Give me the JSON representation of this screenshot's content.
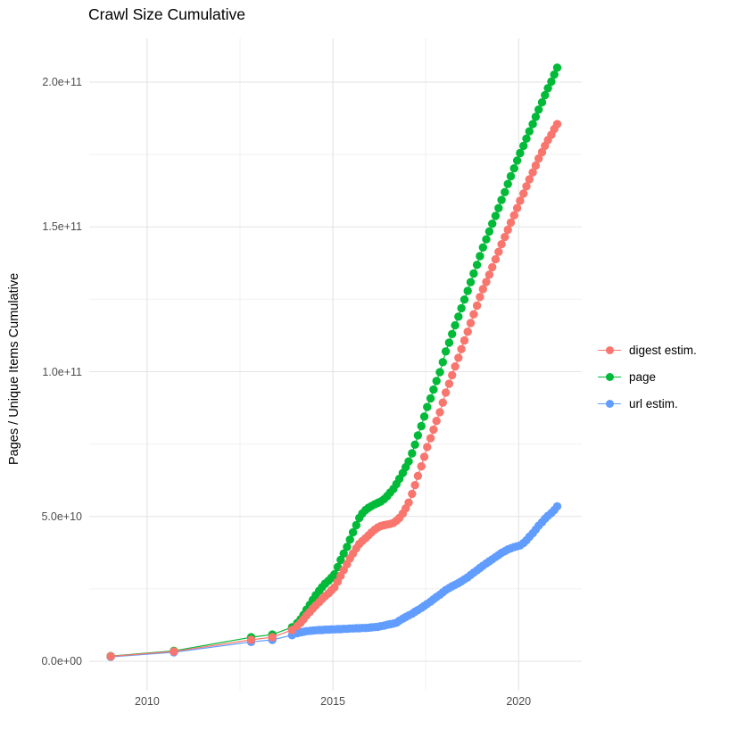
{
  "chart_data": {
    "type": "scatter",
    "title": "Crawl Size Cumulative",
    "y_axis": {
      "title": "Pages / Unique Items Cumulative",
      "value_unit": 10000000000,
      "ticks": [
        {
          "label": "0.0e+00",
          "value": 0
        },
        {
          "label": "5.0e+10",
          "value": 5
        },
        {
          "label": "1.0e+11",
          "value": 10
        },
        {
          "label": "1.5e+11",
          "value": 15
        },
        {
          "label": "2.0e+11",
          "value": 20
        }
      ],
      "minor_tick_values": [
        2.5,
        7.5,
        12.5,
        17.5
      ]
    },
    "x_axis": {
      "title": "",
      "ticks": [
        {
          "label": "2010",
          "value": 2010
        },
        {
          "label": "2015",
          "value": 2015
        },
        {
          "label": "2020",
          "value": 2020
        }
      ],
      "minor_tick_values": [
        2012.5,
        2017.5
      ]
    },
    "grid": {
      "major_color": "#e3e3e3",
      "minor_color": "#f0f0f0",
      "background": "#ffffff"
    },
    "legend_position": "right",
    "draw_order": [
      2,
      1,
      0
    ],
    "series": [
      {
        "name": "digest estim.",
        "color": "#F8766D",
        "points": [
          [
            2009.02,
            0.17
          ],
          [
            2010.72,
            0.34
          ],
          [
            2012.8,
            0.74
          ],
          [
            2013.37,
            0.83
          ],
          [
            2013.9,
            1.08
          ],
          [
            2014.04,
            1.22
          ],
          [
            2014.13,
            1.33
          ],
          [
            2014.21,
            1.45
          ],
          [
            2014.29,
            1.58
          ],
          [
            2014.38,
            1.7
          ],
          [
            2014.46,
            1.82
          ],
          [
            2014.54,
            1.93
          ],
          [
            2014.63,
            2.04
          ],
          [
            2014.71,
            2.15
          ],
          [
            2014.79,
            2.25
          ],
          [
            2014.88,
            2.34
          ],
          [
            2014.96,
            2.45
          ],
          [
            2015.04,
            2.55
          ],
          [
            2015.13,
            2.75
          ],
          [
            2015.21,
            2.95
          ],
          [
            2015.29,
            3.15
          ],
          [
            2015.38,
            3.35
          ],
          [
            2015.46,
            3.55
          ],
          [
            2015.54,
            3.72
          ],
          [
            2015.63,
            3.9
          ],
          [
            2015.71,
            4.05
          ],
          [
            2015.79,
            4.15
          ],
          [
            2015.88,
            4.25
          ],
          [
            2015.96,
            4.35
          ],
          [
            2016.04,
            4.45
          ],
          [
            2016.13,
            4.55
          ],
          [
            2016.21,
            4.62
          ],
          [
            2016.29,
            4.67
          ],
          [
            2016.38,
            4.7
          ],
          [
            2016.46,
            4.72
          ],
          [
            2016.54,
            4.74
          ],
          [
            2016.63,
            4.78
          ],
          [
            2016.71,
            4.85
          ],
          [
            2016.79,
            4.95
          ],
          [
            2016.88,
            5.1
          ],
          [
            2016.96,
            5.28
          ],
          [
            2017.04,
            5.48
          ],
          [
            2017.13,
            5.78
          ],
          [
            2017.21,
            6.08
          ],
          [
            2017.29,
            6.4
          ],
          [
            2017.38,
            6.73
          ],
          [
            2017.46,
            7.06
          ],
          [
            2017.54,
            7.4
          ],
          [
            2017.63,
            7.7
          ],
          [
            2017.71,
            8.0
          ],
          [
            2017.79,
            8.3
          ],
          [
            2017.88,
            8.6
          ],
          [
            2017.96,
            8.93
          ],
          [
            2018.04,
            9.28
          ],
          [
            2018.13,
            9.58
          ],
          [
            2018.21,
            9.88
          ],
          [
            2018.29,
            10.18
          ],
          [
            2018.38,
            10.48
          ],
          [
            2018.46,
            10.78
          ],
          [
            2018.54,
            11.08
          ],
          [
            2018.63,
            11.38
          ],
          [
            2018.71,
            11.68
          ],
          [
            2018.79,
            11.98
          ],
          [
            2018.88,
            12.28
          ],
          [
            2018.96,
            12.58
          ],
          [
            2019.04,
            12.85
          ],
          [
            2019.13,
            13.1
          ],
          [
            2019.21,
            13.35
          ],
          [
            2019.29,
            13.61
          ],
          [
            2019.38,
            13.88
          ],
          [
            2019.46,
            14.14
          ],
          [
            2019.54,
            14.4
          ],
          [
            2019.63,
            14.65
          ],
          [
            2019.71,
            14.9
          ],
          [
            2019.79,
            15.15
          ],
          [
            2019.88,
            15.4
          ],
          [
            2019.96,
            15.65
          ],
          [
            2020.04,
            15.9
          ],
          [
            2020.13,
            16.15
          ],
          [
            2020.21,
            16.4
          ],
          [
            2020.29,
            16.64
          ],
          [
            2020.38,
            16.88
          ],
          [
            2020.46,
            17.12
          ],
          [
            2020.54,
            17.36
          ],
          [
            2020.63,
            17.58
          ],
          [
            2020.71,
            17.8
          ],
          [
            2020.79,
            18.0
          ],
          [
            2020.88,
            18.18
          ],
          [
            2020.96,
            18.38
          ],
          [
            2021.04,
            18.55
          ]
        ]
      },
      {
        "name": "page",
        "color": "#00BA38",
        "points": [
          [
            2009.02,
            0.18
          ],
          [
            2010.72,
            0.36
          ],
          [
            2012.8,
            0.83
          ],
          [
            2013.37,
            0.92
          ],
          [
            2013.9,
            1.17
          ],
          [
            2014.04,
            1.32
          ],
          [
            2014.13,
            1.45
          ],
          [
            2014.21,
            1.6
          ],
          [
            2014.29,
            1.78
          ],
          [
            2014.38,
            1.95
          ],
          [
            2014.46,
            2.12
          ],
          [
            2014.54,
            2.28
          ],
          [
            2014.63,
            2.43
          ],
          [
            2014.71,
            2.56
          ],
          [
            2014.79,
            2.68
          ],
          [
            2014.88,
            2.78
          ],
          [
            2014.96,
            2.88
          ],
          [
            2015.04,
            3.0
          ],
          [
            2015.13,
            3.25
          ],
          [
            2015.21,
            3.5
          ],
          [
            2015.29,
            3.72
          ],
          [
            2015.38,
            3.95
          ],
          [
            2015.46,
            4.2
          ],
          [
            2015.54,
            4.45
          ],
          [
            2015.63,
            4.7
          ],
          [
            2015.71,
            4.95
          ],
          [
            2015.79,
            5.1
          ],
          [
            2015.88,
            5.22
          ],
          [
            2015.96,
            5.3
          ],
          [
            2016.04,
            5.36
          ],
          [
            2016.13,
            5.42
          ],
          [
            2016.21,
            5.47
          ],
          [
            2016.29,
            5.52
          ],
          [
            2016.38,
            5.6
          ],
          [
            2016.46,
            5.7
          ],
          [
            2016.54,
            5.82
          ],
          [
            2016.63,
            5.95
          ],
          [
            2016.71,
            6.12
          ],
          [
            2016.79,
            6.3
          ],
          [
            2016.88,
            6.5
          ],
          [
            2016.96,
            6.7
          ],
          [
            2017.04,
            6.9
          ],
          [
            2017.13,
            7.18
          ],
          [
            2017.21,
            7.48
          ],
          [
            2017.29,
            7.8
          ],
          [
            2017.38,
            8.12
          ],
          [
            2017.46,
            8.45
          ],
          [
            2017.54,
            8.78
          ],
          [
            2017.63,
            9.08
          ],
          [
            2017.71,
            9.38
          ],
          [
            2017.79,
            9.68
          ],
          [
            2017.88,
            9.98
          ],
          [
            2017.96,
            10.33
          ],
          [
            2018.04,
            10.7
          ],
          [
            2018.13,
            11.0
          ],
          [
            2018.21,
            11.3
          ],
          [
            2018.29,
            11.6
          ],
          [
            2018.38,
            11.9
          ],
          [
            2018.46,
            12.19
          ],
          [
            2018.54,
            12.49
          ],
          [
            2018.63,
            12.79
          ],
          [
            2018.71,
            13.09
          ],
          [
            2018.79,
            13.39
          ],
          [
            2018.88,
            13.69
          ],
          [
            2018.96,
            13.99
          ],
          [
            2019.04,
            14.29
          ],
          [
            2019.13,
            14.57
          ],
          [
            2019.21,
            14.84
          ],
          [
            2019.29,
            15.11
          ],
          [
            2019.38,
            15.38
          ],
          [
            2019.46,
            15.65
          ],
          [
            2019.54,
            15.93
          ],
          [
            2019.63,
            16.2
          ],
          [
            2019.71,
            16.48
          ],
          [
            2019.79,
            16.75
          ],
          [
            2019.88,
            17.02
          ],
          [
            2019.96,
            17.29
          ],
          [
            2020.04,
            17.55
          ],
          [
            2020.13,
            17.8
          ],
          [
            2020.21,
            18.05
          ],
          [
            2020.29,
            18.3
          ],
          [
            2020.38,
            18.55
          ],
          [
            2020.46,
            18.8
          ],
          [
            2020.54,
            19.05
          ],
          [
            2020.63,
            19.3
          ],
          [
            2020.71,
            19.55
          ],
          [
            2020.79,
            19.79
          ],
          [
            2020.88,
            20.02
          ],
          [
            2020.96,
            20.26
          ],
          [
            2021.04,
            20.5
          ]
        ]
      },
      {
        "name": "url estim.",
        "color": "#619CFF",
        "points": [
          [
            2009.02,
            0.15
          ],
          [
            2010.72,
            0.31
          ],
          [
            2012.8,
            0.67
          ],
          [
            2013.37,
            0.74
          ],
          [
            2013.9,
            0.9
          ],
          [
            2014.04,
            0.97
          ],
          [
            2014.13,
            1.0
          ],
          [
            2014.21,
            1.02
          ],
          [
            2014.29,
            1.04
          ],
          [
            2014.38,
            1.05
          ],
          [
            2014.46,
            1.06
          ],
          [
            2014.54,
            1.07
          ],
          [
            2014.63,
            1.08
          ],
          [
            2014.71,
            1.08
          ],
          [
            2014.79,
            1.09
          ],
          [
            2014.88,
            1.09
          ],
          [
            2014.96,
            1.1
          ],
          [
            2015.04,
            1.1
          ],
          [
            2015.13,
            1.11
          ],
          [
            2015.21,
            1.11
          ],
          [
            2015.29,
            1.12
          ],
          [
            2015.38,
            1.12
          ],
          [
            2015.46,
            1.13
          ],
          [
            2015.54,
            1.13
          ],
          [
            2015.63,
            1.14
          ],
          [
            2015.71,
            1.14
          ],
          [
            2015.79,
            1.15
          ],
          [
            2015.88,
            1.15
          ],
          [
            2015.96,
            1.16
          ],
          [
            2016.04,
            1.17
          ],
          [
            2016.13,
            1.18
          ],
          [
            2016.21,
            1.19
          ],
          [
            2016.29,
            1.21
          ],
          [
            2016.38,
            1.23
          ],
          [
            2016.46,
            1.26
          ],
          [
            2016.54,
            1.28
          ],
          [
            2016.63,
            1.3
          ],
          [
            2016.71,
            1.33
          ],
          [
            2016.79,
            1.4
          ],
          [
            2016.88,
            1.47
          ],
          [
            2016.96,
            1.53
          ],
          [
            2017.04,
            1.58
          ],
          [
            2017.13,
            1.64
          ],
          [
            2017.21,
            1.71
          ],
          [
            2017.29,
            1.77
          ],
          [
            2017.38,
            1.84
          ],
          [
            2017.46,
            1.91
          ],
          [
            2017.54,
            1.98
          ],
          [
            2017.63,
            2.06
          ],
          [
            2017.71,
            2.14
          ],
          [
            2017.79,
            2.22
          ],
          [
            2017.88,
            2.3
          ],
          [
            2017.96,
            2.38
          ],
          [
            2018.04,
            2.46
          ],
          [
            2018.13,
            2.53
          ],
          [
            2018.21,
            2.59
          ],
          [
            2018.29,
            2.64
          ],
          [
            2018.38,
            2.7
          ],
          [
            2018.46,
            2.76
          ],
          [
            2018.54,
            2.83
          ],
          [
            2018.63,
            2.9
          ],
          [
            2018.71,
            2.98
          ],
          [
            2018.79,
            3.06
          ],
          [
            2018.88,
            3.14
          ],
          [
            2018.96,
            3.22
          ],
          [
            2019.04,
            3.3
          ],
          [
            2019.13,
            3.38
          ],
          [
            2019.21,
            3.45
          ],
          [
            2019.29,
            3.52
          ],
          [
            2019.38,
            3.6
          ],
          [
            2019.46,
            3.67
          ],
          [
            2019.54,
            3.74
          ],
          [
            2019.63,
            3.8
          ],
          [
            2019.71,
            3.86
          ],
          [
            2019.79,
            3.9
          ],
          [
            2019.88,
            3.94
          ],
          [
            2019.96,
            3.97
          ],
          [
            2020.04,
            4.0
          ],
          [
            2020.13,
            4.08
          ],
          [
            2020.21,
            4.18
          ],
          [
            2020.29,
            4.3
          ],
          [
            2020.38,
            4.42
          ],
          [
            2020.46,
            4.55
          ],
          [
            2020.54,
            4.68
          ],
          [
            2020.63,
            4.8
          ],
          [
            2020.71,
            4.92
          ],
          [
            2020.79,
            5.02
          ],
          [
            2020.88,
            5.12
          ],
          [
            2020.96,
            5.22
          ],
          [
            2021.04,
            5.35
          ]
        ]
      }
    ]
  }
}
